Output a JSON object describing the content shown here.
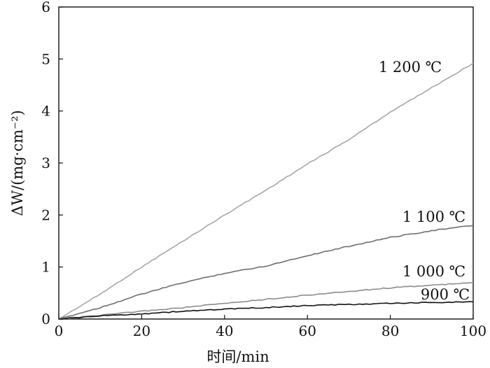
{
  "chart_data": {
    "type": "line",
    "title": "",
    "xlabel": "时间/min",
    "ylabel": "ΔW/(mg·cm⁻²)",
    "xlim": [
      0,
      100
    ],
    "ylim": [
      0,
      6
    ],
    "xticks": [
      "0",
      "20",
      "40",
      "60",
      "80",
      "100"
    ],
    "yticks": [
      "0",
      "1",
      "2",
      "3",
      "4",
      "5",
      "6"
    ],
    "grid": false,
    "legend": "inline labels at line ends",
    "series": [
      {
        "name": "1 200 ℃",
        "color": "#a6a6a6",
        "x": [
          0,
          10,
          20,
          30,
          40,
          50,
          60,
          70,
          80,
          90,
          100
        ],
        "y": [
          0,
          0.48,
          1.0,
          1.5,
          2.0,
          2.48,
          2.98,
          3.45,
          3.98,
          4.45,
          4.92
        ]
      },
      {
        "name": "1 100 ℃",
        "color": "#6f6f6f",
        "x": [
          0,
          10,
          20,
          30,
          40,
          50,
          60,
          70,
          80,
          90,
          100
        ],
        "y": [
          0,
          0.22,
          0.48,
          0.7,
          0.88,
          1.02,
          1.22,
          1.4,
          1.57,
          1.7,
          1.8
        ]
      },
      {
        "name": "1 000 ℃",
        "color": "#8c8c8c",
        "x": [
          0,
          10,
          20,
          30,
          40,
          50,
          60,
          70,
          80,
          90,
          100
        ],
        "y": [
          0,
          0.07,
          0.15,
          0.22,
          0.3,
          0.38,
          0.46,
          0.53,
          0.6,
          0.65,
          0.7
        ]
      },
      {
        "name": "900 ℃",
        "color": "#111111",
        "x": [
          0,
          10,
          20,
          30,
          40,
          50,
          60,
          70,
          80,
          90,
          100
        ],
        "y": [
          0,
          0.06,
          0.1,
          0.15,
          0.19,
          0.22,
          0.26,
          0.28,
          0.3,
          0.32,
          0.33
        ]
      }
    ]
  }
}
